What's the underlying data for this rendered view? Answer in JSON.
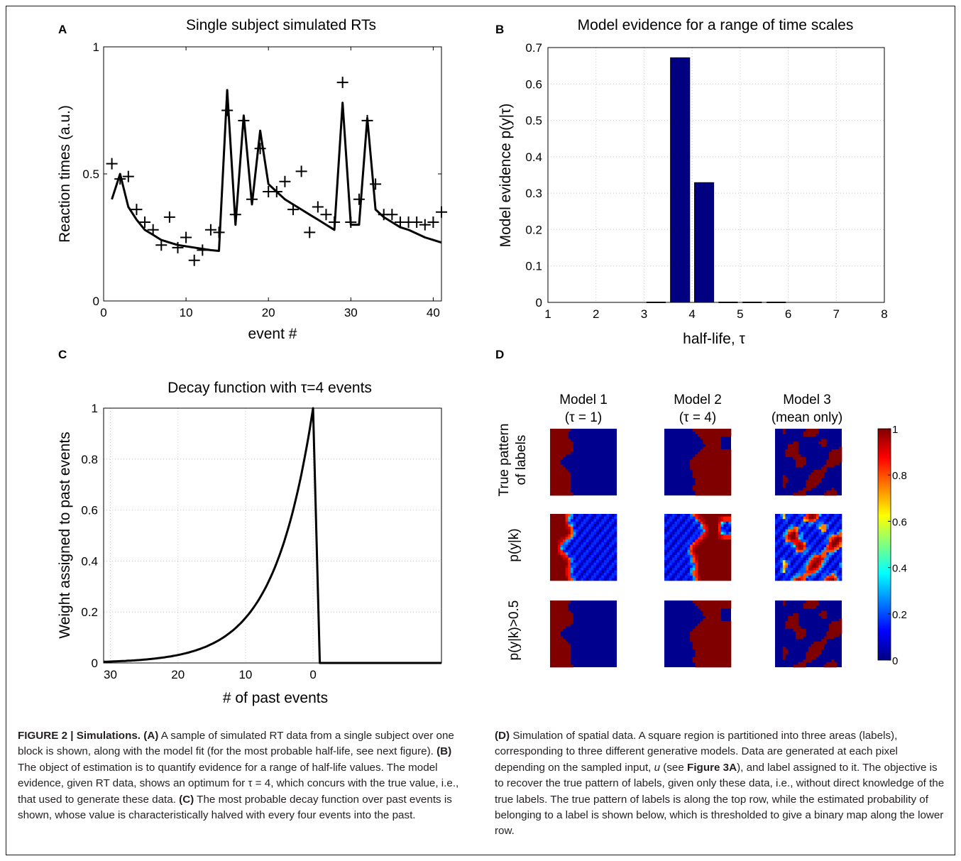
{
  "panels": {
    "A": {
      "letter": "A",
      "chart_data": {
        "type": "line",
        "title": "Single subject simulated RTs",
        "xlabel": "event #",
        "ylabel": "Reaction times (a.u.)",
        "xlim": [
          0,
          41
        ],
        "ylim": [
          0,
          1
        ],
        "xticks": [
          0,
          10,
          20,
          30,
          40
        ],
        "yticks": [
          0,
          0.5,
          1
        ],
        "grid": false,
        "series": [
          {
            "x": [
              1,
              2,
              3,
              4,
              5,
              6,
              7,
              8,
              9,
              10,
              11,
              12,
              13,
              14,
              15,
              16,
              17,
              18,
              19,
              20,
              21,
              22,
              23,
              24,
              25,
              26,
              27,
              28,
              29,
              30,
              31,
              32,
              33,
              34,
              35,
              36,
              37,
              38,
              39,
              40,
              41
            ],
            "y": [
              0.4,
              0.5,
              0.37,
              0.32,
              0.28,
              0.26,
              0.24,
              0.23,
              0.22,
              0.215,
              0.21,
              0.205,
              0.2,
              0.197,
              0.83,
              0.3,
              0.73,
              0.38,
              0.67,
              0.46,
              0.43,
              0.4,
              0.38,
              0.36,
              0.34,
              0.32,
              0.3,
              0.28,
              0.78,
              0.3,
              0.3,
              0.72,
              0.36,
              0.33,
              0.31,
              0.29,
              0.28,
              0.265,
              0.25,
              0.24,
              0.23
            ]
          },
          {
            "x": [
              1,
              2,
              3,
              4,
              5,
              6,
              7,
              8,
              9,
              10,
              11,
              12,
              13,
              14,
              15,
              16,
              17,
              18,
              19,
              20,
              21,
              22,
              23,
              24,
              25,
              26,
              27,
              28,
              29,
              30,
              31,
              32,
              33,
              34,
              35,
              36,
              37,
              38,
              39,
              40,
              41
            ],
            "y": [
              0.54,
              0.48,
              0.49,
              0.36,
              0.31,
              0.28,
              0.22,
              0.33,
              0.21,
              0.25,
              0.16,
              0.2,
              0.28,
              0.27,
              0.75,
              0.34,
              0.71,
              0.4,
              0.6,
              0.43,
              0.43,
              0.47,
              0.36,
              0.51,
              0.27,
              0.37,
              0.34,
              0.31,
              0.86,
              0.31,
              0.4,
              0.71,
              0.46,
              0.34,
              0.34,
              0.31,
              0.31,
              0.31,
              0.3,
              0.31,
              0.35
            ]
          }
        ]
      }
    },
    "B": {
      "letter": "B",
      "chart_data": {
        "type": "bar",
        "title": "Model evidence for a range of time scales",
        "xlabel": "half-life, τ",
        "ylabel": "Model evidence p(y|τ)",
        "xlim": [
          1,
          8
        ],
        "ylim": [
          0,
          0.7
        ],
        "xticks": [
          1,
          2,
          3,
          4,
          5,
          6,
          7,
          8
        ],
        "yticks": [
          0,
          0.1,
          0.2,
          0.3,
          0.4,
          0.5,
          0.6,
          0.7
        ],
        "grid": true,
        "x": [
          3.25,
          3.75,
          4.25,
          4.75,
          5.25,
          5.75
        ],
        "values": [
          0.001,
          0.672,
          0.329,
          0.001,
          0.001,
          0.0
        ],
        "color": "#000080"
      }
    },
    "C": {
      "letter": "C",
      "chart_data": {
        "type": "line",
        "title": "Decay function with τ=4 events",
        "xlabel": "# of past events",
        "ylabel": "Weight assigned to past events",
        "xlim": [
          31,
          -19
        ],
        "ylim": [
          0,
          1
        ],
        "xticks": [
          30,
          20,
          10,
          0
        ],
        "yticks": [
          0,
          0.2,
          0.4,
          0.6,
          0.8,
          1
        ],
        "grid": true,
        "decay_half_life": 4
      }
    },
    "D": {
      "letter": "D",
      "columns": [
        {
          "model": "Model 1",
          "param": "(τ = 1)"
        },
        {
          "model": "Model 2",
          "param": "(τ = 4)"
        },
        {
          "model": "Model 3",
          "param": "(mean only)"
        }
      ],
      "rows": [
        "True pattern",
        "of labels",
        "p(y|k)",
        "p(y|k)>0.5"
      ],
      "colorbar": {
        "ticks": [
          "1",
          "0.8",
          "0.6",
          "0.4",
          "0.2",
          "0"
        ],
        "colors": [
          "#000080",
          "#0000ff",
          "#0080ff",
          "#00ffff",
          "#80ff80",
          "#ffff00",
          "#ff8000",
          "#ff0000",
          "#800000"
        ]
      },
      "low_color": "#00008f",
      "high_color": "#800000"
    }
  },
  "caption": {
    "left_head": "FIGURE 2 | Simulations.",
    "A_tag": "(A)",
    "A_text": " A sample of simulated RT data from a single subject over one block is shown, along with the model fit (for the most probable half-life, see next figure). ",
    "B_tag": "(B)",
    "B_text": " The object of estimation is to quantify evidence for a range of half-life values. The model evidence, given RT data, shows an optimum for τ = 4, which concurs with the true value, i.e., that used to generate these data. ",
    "C_tag": "(C)",
    "C_text": " The most probable decay function over past events is shown, whose value is characteristically halved with every four events into the past.",
    "D_tag": "(D)",
    "D_text1": " Simulation of spatial data. A square region is partitioned into three areas (labels), corresponding to three different generative models. Data are generated at each pixel depending on the sampled input, ",
    "D_u": "u",
    "D_text2": " (see ",
    "D_ref": "Figure 3A",
    "D_text3": "), and label assigned to it. The objective is to recover the true pattern of labels, given only these data, i.e., without direct knowledge of the true labels. The true pattern of labels is along the top row, while the estimated probability of belonging to a label is shown below, which is thresholded to give a binary map along the lower row."
  }
}
